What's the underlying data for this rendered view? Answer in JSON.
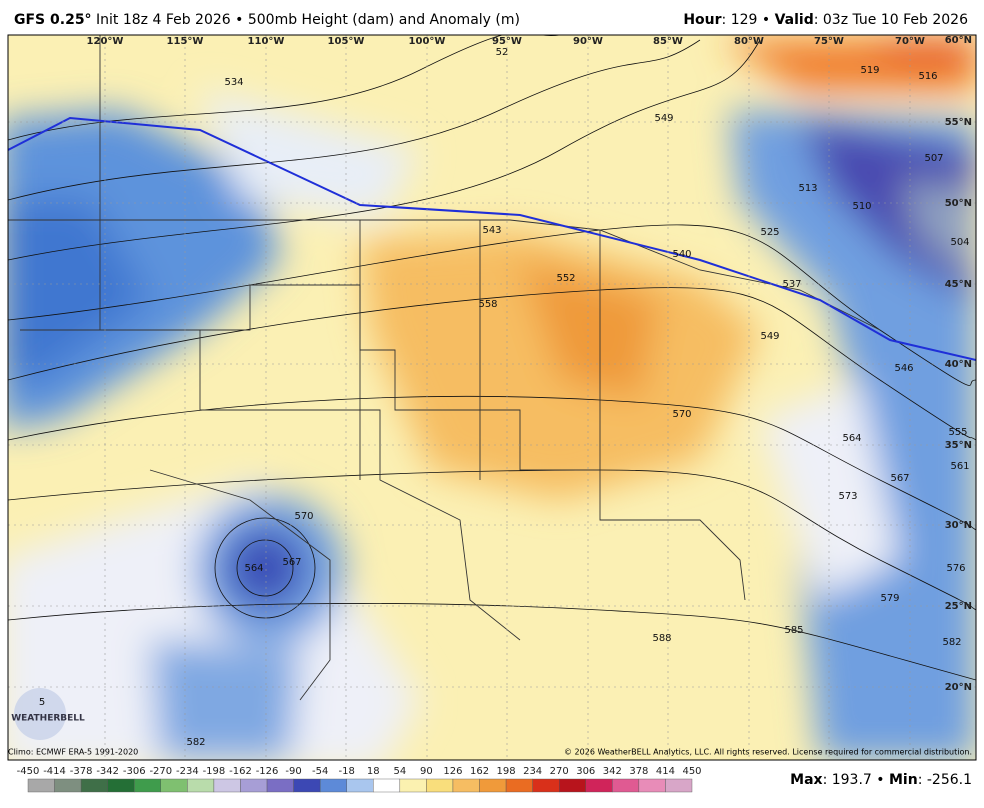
{
  "header": {
    "model": "GFS 0.25°",
    "subtitle": "Init 18z 4 Feb 2026 • 500mb Height (dam) and Anomaly (m)",
    "hour_label": "Hour",
    "hour_value": ": 129 • ",
    "valid_label": "Valid",
    "valid_value": ": 03z Tue 10 Feb 2026"
  },
  "map": {
    "longitudes": [
      "120°W",
      "115°W",
      "110°W",
      "105°W",
      "100°W",
      "95°W",
      "90°W",
      "85°W",
      "80°W",
      "75°W",
      "70°W"
    ],
    "latitudes": [
      "60°N",
      "55°N",
      "50°N",
      "45°N",
      "40°N",
      "35°N",
      "30°N",
      "25°N",
      "20°N"
    ],
    "contour_labels": [
      "534",
      "52",
      "519",
      "516",
      "549",
      "507",
      "513",
      "510",
      "525",
      "504",
      "537",
      "543",
      "540",
      "552",
      "558",
      "549",
      "546",
      "570",
      "564",
      "555",
      "561",
      "567",
      "573",
      "576",
      "579",
      "582",
      "585",
      "588",
      "570",
      "567",
      "564",
      "582",
      "5"
    ],
    "logo": "WEATHERBELL"
  },
  "footer": {
    "climo": "Climo: ECMWF ERA-5 1991-2020",
    "copyright": "© 2026 WeatherBELL Analytics, LLC. All rights reserved. License required for commercial distribution.",
    "colorbar_ticks": [
      "-450",
      "-414",
      "-378",
      "-342",
      "-306",
      "-270",
      "-234",
      "-198",
      "-162",
      "-126",
      "-90",
      "-54",
      "-18",
      "18",
      "54",
      "90",
      "126",
      "162",
      "198",
      "234",
      "270",
      "306",
      "342",
      "378",
      "414",
      "450"
    ],
    "max_label": "Max",
    "max_value": ": 193.7 • ",
    "min_label": "Min",
    "min_value": ": -256.1"
  }
}
